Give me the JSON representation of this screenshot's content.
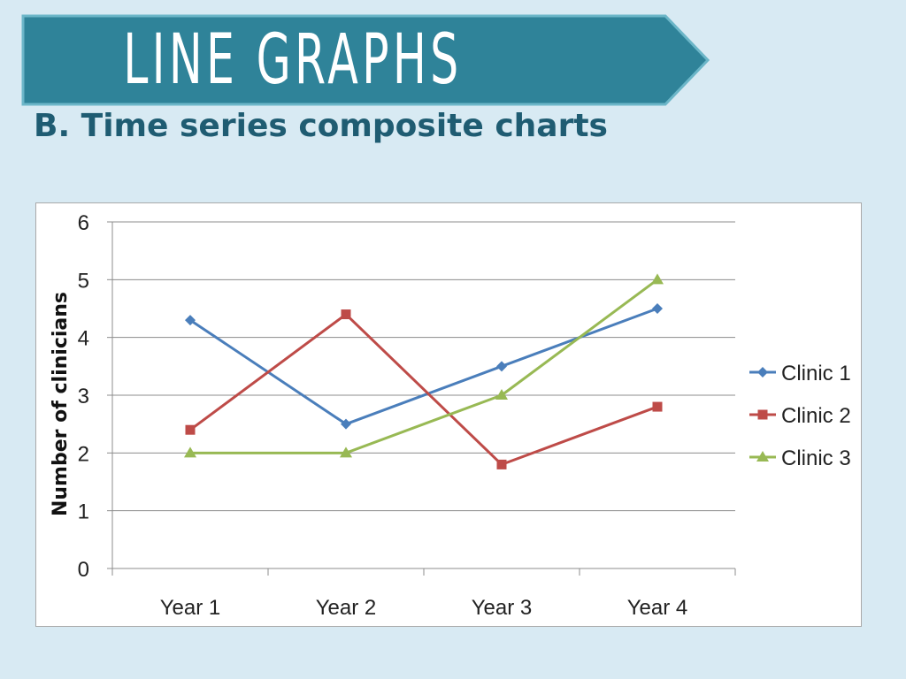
{
  "banner": {
    "title": "LINE GRAPHS",
    "color": "#2f8399",
    "border_color": "#6cb6c8"
  },
  "subtitle": "B. Time series composite charts",
  "chart_data": {
    "type": "line",
    "title": "",
    "xlabel": "",
    "ylabel": "Number of clinicians",
    "categories": [
      "Year 1",
      "Year 2",
      "Year 3",
      "Year 4"
    ],
    "ylim": [
      0,
      6
    ],
    "yticks": [
      0,
      1,
      2,
      3,
      4,
      5,
      6
    ],
    "grid": true,
    "legend_position": "right",
    "series": [
      {
        "name": "Clinic 1",
        "values": [
          4.3,
          2.5,
          3.5,
          4.5
        ],
        "color": "#4a7ebb",
        "marker": "diamond"
      },
      {
        "name": "Clinic 2",
        "values": [
          2.4,
          4.4,
          1.8,
          2.8
        ],
        "color": "#be4b48",
        "marker": "square"
      },
      {
        "name": "Clinic 3",
        "values": [
          2.0,
          2.0,
          3.0,
          5.0
        ],
        "color": "#98b954",
        "marker": "triangle"
      }
    ]
  }
}
